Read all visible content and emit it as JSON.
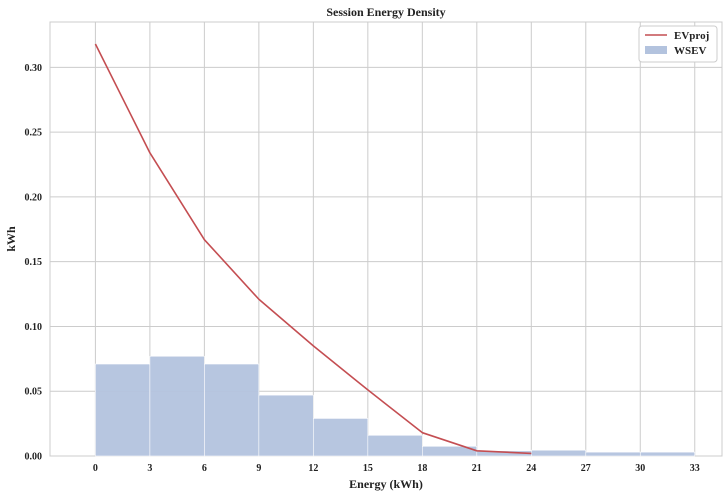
{
  "chart_data": {
    "type": "bar+line",
    "title": "Session Energy Density",
    "xlabel": "Energy (kWh)",
    "ylabel": "kWh",
    "xlim": [
      -2.5,
      34.5
    ],
    "ylim": [
      0,
      0.335
    ],
    "xticks": [
      0,
      3,
      6,
      9,
      12,
      15,
      18,
      21,
      24,
      27,
      30,
      33
    ],
    "yticks": [
      0.0,
      0.05,
      0.1,
      0.15,
      0.2,
      0.25,
      0.3
    ],
    "grid": true,
    "legend_position": "top-right",
    "histogram": {
      "name": "WSEV",
      "color": "#b3c3de",
      "bins": [
        {
          "x0": 0,
          "x1": 3,
          "value": 0.071
        },
        {
          "x0": 3,
          "x1": 6,
          "value": 0.077
        },
        {
          "x0": 6,
          "x1": 9,
          "value": 0.071
        },
        {
          "x0": 9,
          "x1": 12,
          "value": 0.047
        },
        {
          "x0": 12,
          "x1": 15,
          "value": 0.029
        },
        {
          "x0": 15,
          "x1": 18,
          "value": 0.016
        },
        {
          "x0": 18,
          "x1": 21,
          "value": 0.0075
        },
        {
          "x0": 21,
          "x1": 24,
          "value": 0.004
        },
        {
          "x0": 24,
          "x1": 27,
          "value": 0.0045
        },
        {
          "x0": 27,
          "x1": 30,
          "value": 0.003
        },
        {
          "x0": 30,
          "x1": 33,
          "value": 0.003
        }
      ]
    },
    "line": {
      "name": "EVproj",
      "color": "#c44e52",
      "x": [
        0,
        3,
        6,
        9,
        12,
        15,
        18,
        21,
        24
      ],
      "y": [
        0.318,
        0.234,
        0.167,
        0.121,
        0.085,
        0.051,
        0.018,
        0.004,
        0.002
      ]
    }
  }
}
